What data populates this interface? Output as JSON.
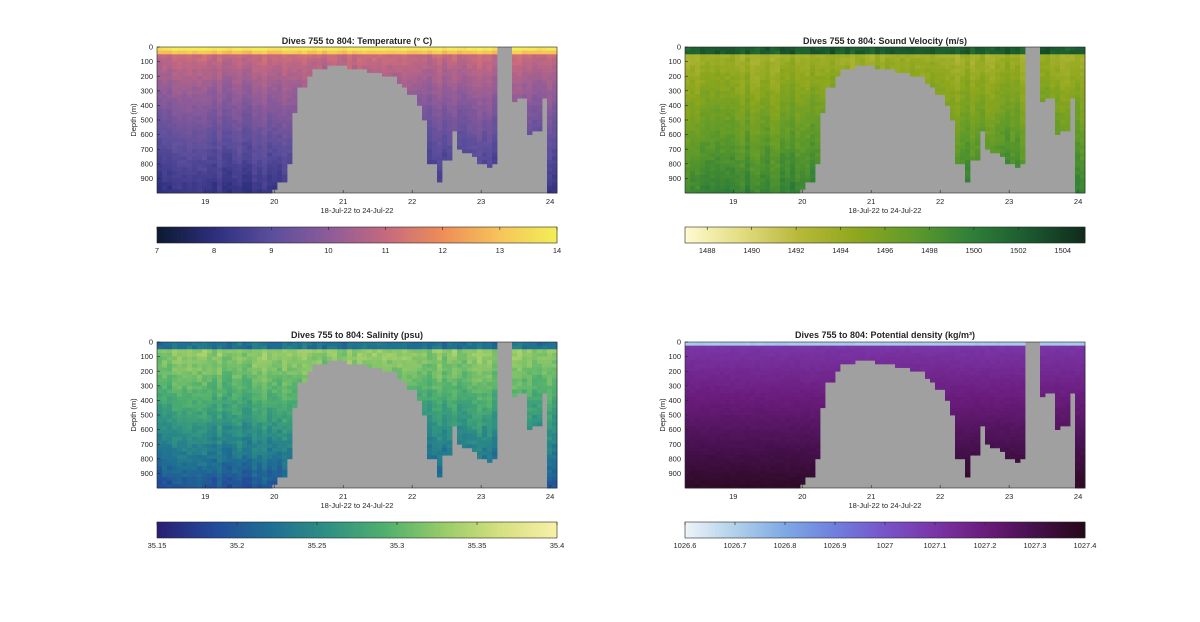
{
  "figure": {
    "x_range_label": "18-Jul-22 to 24-Jul-22",
    "y_axis_label": "Depth (m)"
  },
  "chart_data": [
    {
      "type": "heatmap",
      "title": "Dives 755 to 804: Temperature (° C)",
      "xlabel": "18-Jul-22 to 24-Jul-22",
      "ylabel": "Depth (m)",
      "xlim": [
        18.3,
        24.1
      ],
      "x_ticks": [
        19,
        20,
        21,
        22,
        23,
        24
      ],
      "ylim": [
        0,
        1000
      ],
      "y_reversed": true,
      "y_ticks": [
        0,
        100,
        200,
        300,
        400,
        500,
        600,
        700,
        800,
        900
      ],
      "colorbar": {
        "min": 7,
        "max": 14,
        "ticks": [
          7,
          8,
          9,
          10,
          11,
          12,
          13,
          14
        ],
        "colormap": [
          "#0b1a2f",
          "#2d2e7e",
          "#5a4e9c",
          "#8d5b9a",
          "#c5697f",
          "#ee8d57",
          "#f7c45a",
          "#f2ef55"
        ]
      }
    },
    {
      "type": "heatmap",
      "title": "Dives 755 to 804: Sound Velocity (m/s)",
      "xlabel": "18-Jul-22 to 24-Jul-22",
      "ylabel": "Depth (m)",
      "xlim": [
        18.3,
        24.1
      ],
      "x_ticks": [
        19,
        20,
        21,
        22,
        23,
        24
      ],
      "ylim": [
        0,
        1000
      ],
      "y_reversed": true,
      "y_ticks": [
        0,
        100,
        200,
        300,
        400,
        500,
        600,
        700,
        800,
        900
      ],
      "colorbar": {
        "min": 1487,
        "max": 1505,
        "ticks": [
          1488,
          1490,
          1492,
          1494,
          1496,
          1498,
          1500,
          1502,
          1504
        ],
        "colormap": [
          "#fffad0",
          "#e2dc80",
          "#b7b839",
          "#8ea71d",
          "#5f9a2a",
          "#2f8038",
          "#1b5a2f",
          "#112a1c"
        ]
      }
    },
    {
      "type": "heatmap",
      "title": "Dives 755 to 804: Salinity (psu)",
      "xlabel": "18-Jul-22 to 24-Jul-22",
      "ylabel": "Depth (m)",
      "xlim": [
        18.3,
        24.1
      ],
      "x_ticks": [
        19,
        20,
        21,
        22,
        23,
        24
      ],
      "ylim": [
        0,
        1000
      ],
      "y_reversed": true,
      "y_ticks": [
        0,
        100,
        200,
        300,
        400,
        500,
        600,
        700,
        800,
        900
      ],
      "colorbar": {
        "min": 35.15,
        "max": 35.4,
        "ticks": [
          "35.15",
          "35.2",
          "35.25",
          "35.3",
          "35.35",
          "35.4"
        ],
        "colormap": [
          "#2a1e74",
          "#234a9a",
          "#1f6f93",
          "#2f9183",
          "#50b06e",
          "#97cb68",
          "#d6e07e",
          "#f7f0a8"
        ]
      }
    },
    {
      "type": "heatmap",
      "title": "Dives 755 to 804: Potential density (kg/m³)",
      "xlabel": "18-Jul-22 to 24-Jul-22",
      "ylabel": "Depth (m)",
      "xlim": [
        18.3,
        24.1
      ],
      "x_ticks": [
        19,
        20,
        21,
        22,
        23,
        24
      ],
      "ylim": [
        0,
        1000
      ],
      "y_reversed": true,
      "y_ticks": [
        0,
        100,
        200,
        300,
        400,
        500,
        600,
        700,
        800,
        900
      ],
      "colorbar": {
        "min": 1026.6,
        "max": 1027.4,
        "ticks": [
          "1026.6",
          "1026.7",
          "1026.8",
          "1026.9",
          "1027",
          "1027.1",
          "1027.2",
          "1027.3",
          "1027.4"
        ],
        "colormap": [
          "#eef4f8",
          "#b1d0ea",
          "#7ea9e4",
          "#6f7fdd",
          "#7854c8",
          "#7a35a6",
          "#6a1c7c",
          "#45104c",
          "#260817"
        ]
      }
    }
  ],
  "bathymetry_profile": {
    "unit": "max sampled depth (m) per dive, x in days",
    "x": [
      18.3,
      19.95,
      20.05,
      20.15,
      20.25,
      20.35,
      20.45,
      20.55,
      20.65,
      20.75,
      20.85,
      20.95,
      21.05,
      21.15,
      21.25,
      21.35,
      21.45,
      21.55,
      21.65,
      21.75,
      21.85,
      21.95,
      22.05,
      22.15,
      22.25,
      22.35,
      22.45,
      22.55,
      22.65,
      22.75,
      22.85,
      22.95,
      23.05,
      23.15,
      23.25,
      23.35,
      23.45,
      23.55,
      23.65,
      23.75,
      23.85,
      23.95,
      24.1
    ],
    "depth": [
      1000,
      960,
      920,
      780,
      440,
      260,
      180,
      150,
      130,
      120,
      110,
      120,
      130,
      140,
      150,
      160,
      170,
      190,
      200,
      230,
      270,
      310,
      380,
      500,
      780,
      920,
      760,
      570,
      700,
      720,
      730,
      800,
      820,
      800,
      0,
      0,
      370,
      350,
      580,
      560,
      340,
      980,
      1000
    ]
  }
}
